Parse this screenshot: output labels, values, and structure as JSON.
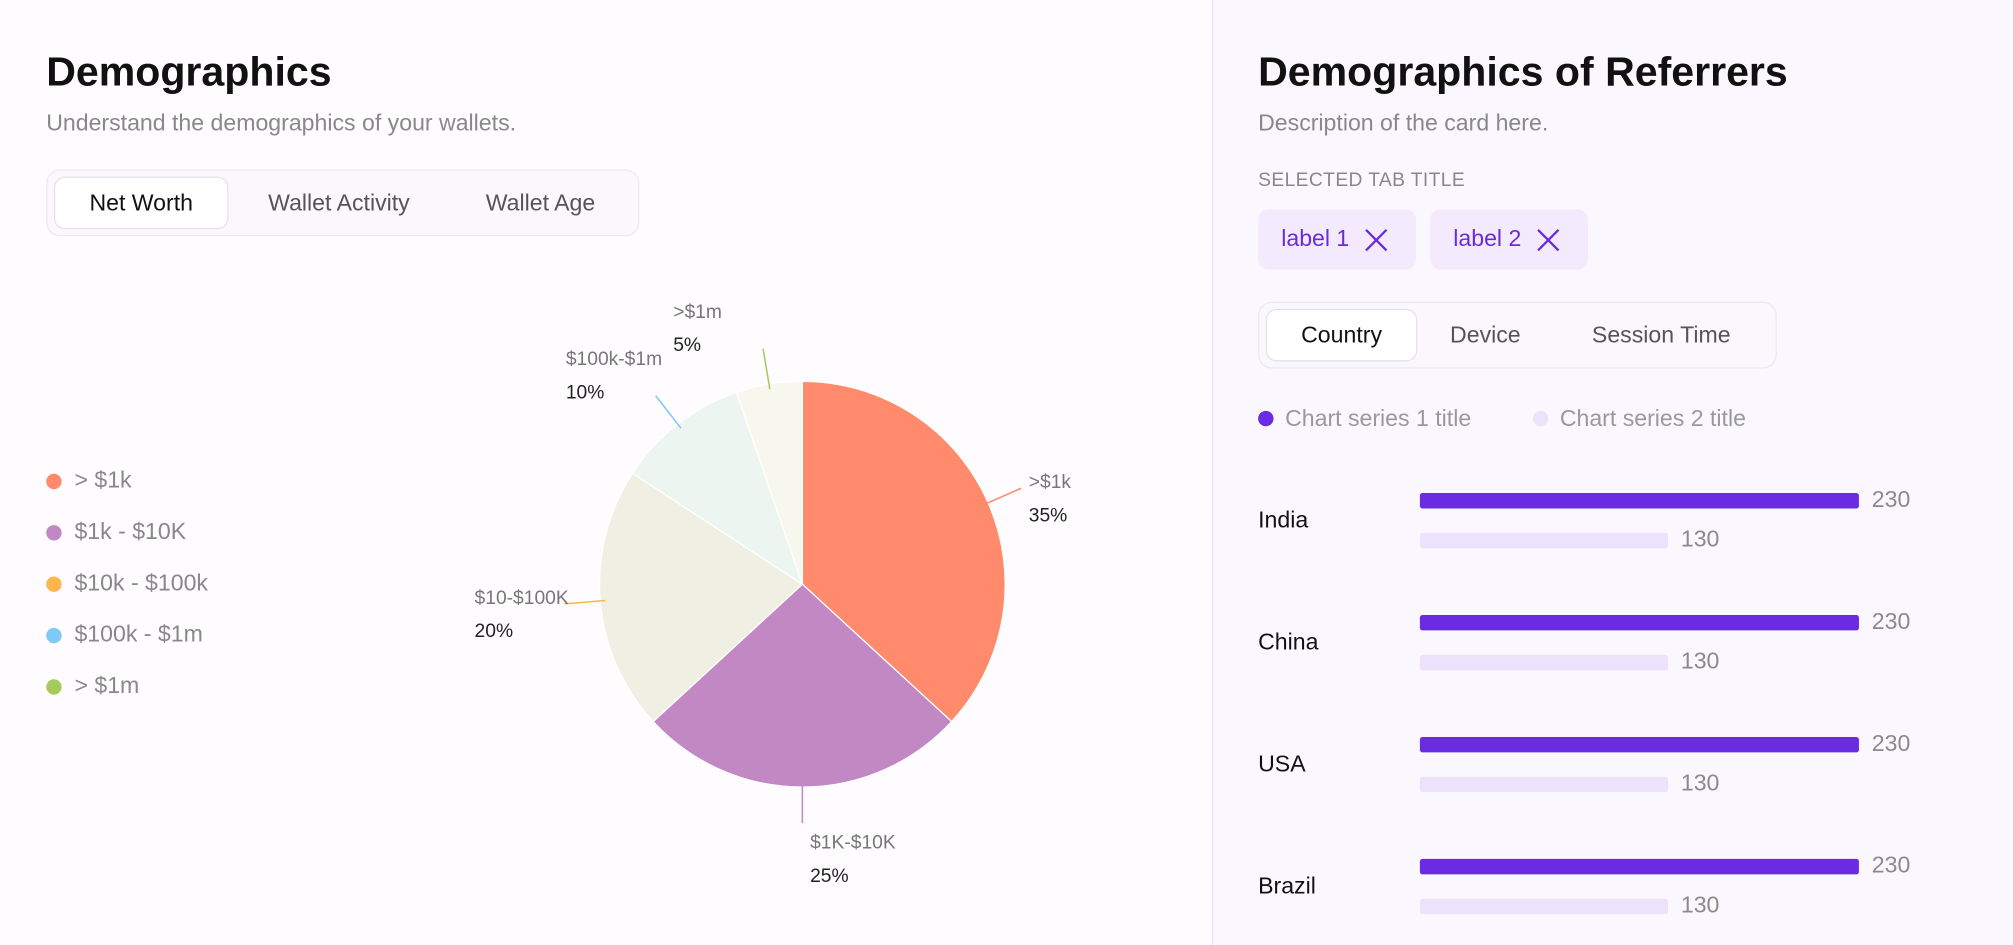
{
  "left": {
    "title": "Demographics",
    "subtitle": "Understand the demographics of your wallets.",
    "tabs": [
      "Net Worth",
      "Wallet Activity",
      "Wallet Age"
    ],
    "selected_tab": 0
  },
  "right": {
    "title": "Demographics of Referrers",
    "subtitle": "Description of the card here.",
    "section_title": "SELECTED TAB TITLE",
    "chips": [
      "label 1",
      "label 2"
    ],
    "tabs": [
      "Country",
      "Device",
      "Session Time"
    ],
    "selected_tab": 0
  },
  "chart_data": [
    {
      "type": "pie",
      "legend": [
        "> $1k",
        "$1k - $10K",
        "$10k - $100k",
        "$100k - $1m",
        "> $1m"
      ],
      "legend_colors": [
        "#ff8a6c",
        "#c288c4",
        "#ffb54d",
        "#80c8f5",
        "#a7cb5a"
      ],
      "categories": [
        ">$1k",
        "$1K-$10K",
        "$10-$100K",
        "$100k-$1m",
        ">$1m"
      ],
      "values": [
        35,
        25,
        20,
        10,
        5
      ],
      "value_labels": [
        "35%",
        "25%",
        "20%",
        "10%",
        "5%"
      ],
      "colors": [
        "#ff8a6c",
        "#c288c4",
        "#efefe3",
        "#ecf5f0",
        "#f7f7ee"
      ]
    },
    {
      "type": "hbar",
      "categories": [
        "India",
        "China",
        "USA",
        "Brazil"
      ],
      "series": [
        {
          "name": "Chart series 1 title",
          "color": "#6b2be3",
          "values": [
            230,
            230,
            230,
            230
          ]
        },
        {
          "name": "Chart series 2 title",
          "color": "#ede2fb",
          "values": [
            130,
            130,
            130,
            130
          ]
        }
      ]
    }
  ]
}
